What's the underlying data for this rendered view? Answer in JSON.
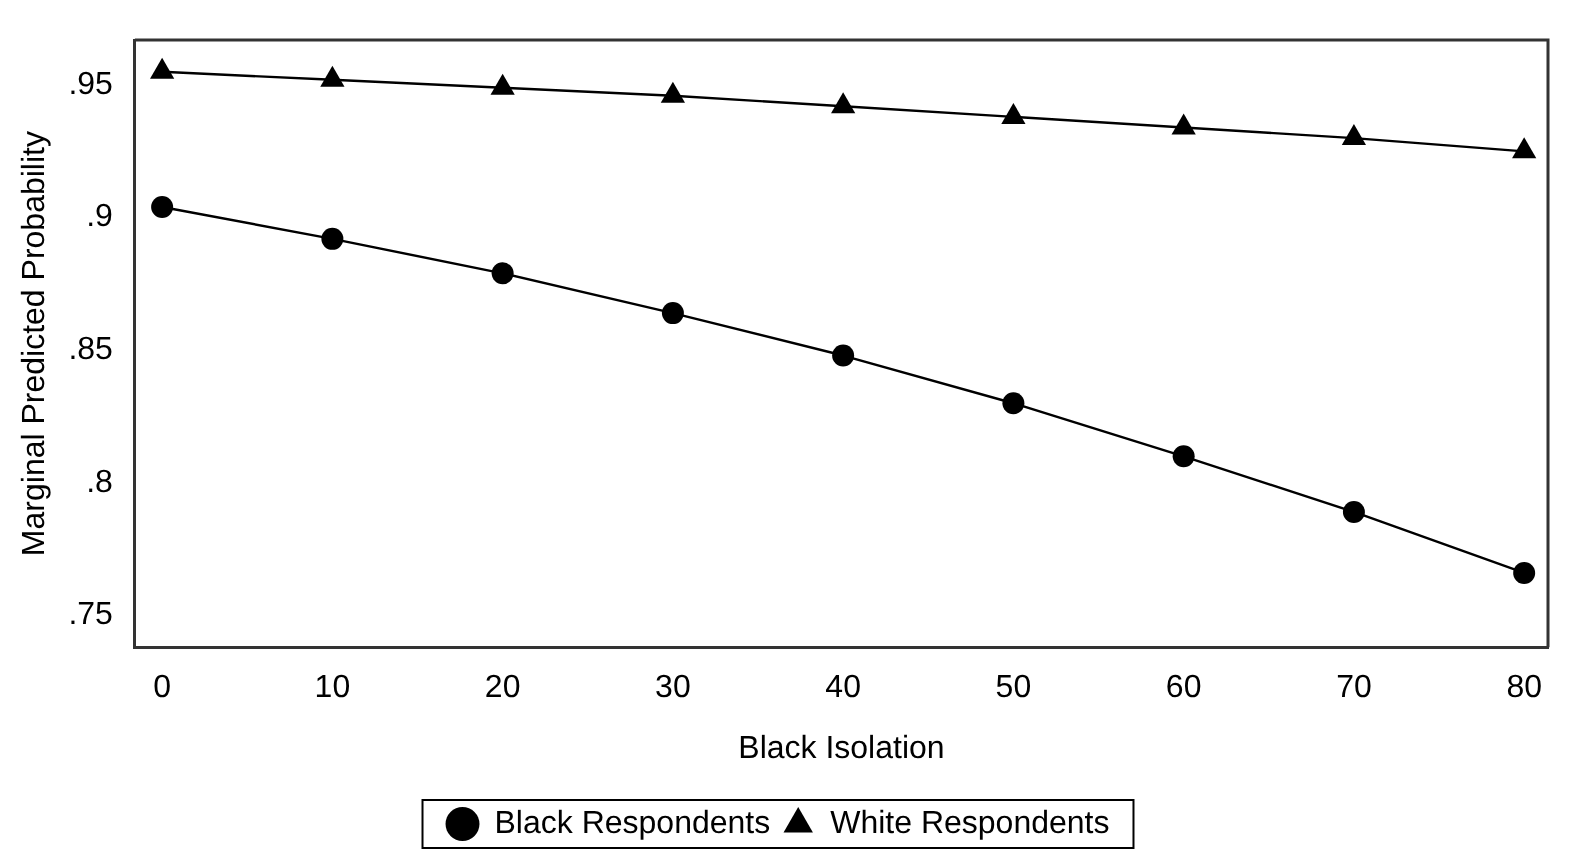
{
  "chart_data": {
    "type": "line",
    "xlabel": "Black Isolation",
    "ylabel": "Marginal Predicted Probability",
    "x": [
      0,
      10,
      20,
      30,
      40,
      50,
      60,
      70,
      80
    ],
    "series": [
      {
        "name": "Black Respondents",
        "color": "#000000",
        "marker": "circle",
        "values": [
          0.904,
          0.892,
          0.879,
          0.864,
          0.848,
          0.83,
          0.81,
          0.789,
          0.766
        ]
      },
      {
        "name": "White Respondents",
        "color": "#000000",
        "marker": "triangle",
        "values": [
          0.955,
          0.952,
          0.949,
          0.946,
          0.942,
          0.938,
          0.934,
          0.93,
          0.925
        ]
      }
    ],
    "xlim": [
      -1.6,
      81.4
    ],
    "xticks": [
      0,
      10,
      20,
      30,
      40,
      50,
      60,
      70,
      80
    ],
    "ylim": [
      0.738,
      0.967
    ],
    "yticks": [
      {
        "value": 0.75,
        "label": ".75"
      },
      {
        "value": 0.8,
        "label": ".8"
      },
      {
        "value": 0.85,
        "label": ".85"
      },
      {
        "value": 0.9,
        "label": ".9"
      },
      {
        "value": 0.95,
        "label": ".95"
      }
    ],
    "grid": false,
    "legend": "bottom",
    "line_style": "solid"
  }
}
